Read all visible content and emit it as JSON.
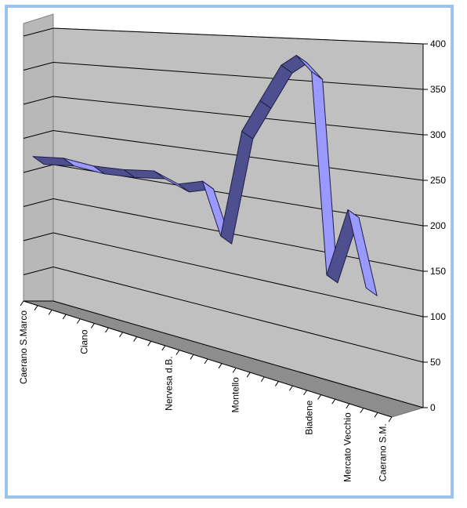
{
  "chart_data": {
    "type": "line",
    "style": "3d-ribbon",
    "categories": [
      "Caerano S.Marco",
      "Ciano",
      "Nervesa d.B.",
      "Montello",
      "Biadene",
      "Mercato Vecchio",
      "Caerano S.M."
    ],
    "y_ticks": [
      "0",
      "50",
      "100",
      "150",
      "200",
      "250",
      "300",
      "350",
      "400"
    ],
    "ylim": [
      0,
      400
    ],
    "grid": true,
    "legend": "none",
    "series": [
      {
        "points": [
          {
            "x": 0.0,
            "y": 205
          },
          {
            "x": 0.5,
            "y": 210
          },
          {
            "x": 1.0,
            "y": 206
          },
          {
            "x": 1.5,
            "y": 208
          },
          {
            "x": 2.0,
            "y": 213
          },
          {
            "x": 2.4,
            "y": 201
          },
          {
            "x": 2.8,
            "y": 210
          },
          {
            "x": 3.1,
            "y": 145
          },
          {
            "x": 3.45,
            "y": 280
          },
          {
            "x": 3.75,
            "y": 320
          },
          {
            "x": 4.1,
            "y": 365
          },
          {
            "x": 4.35,
            "y": 378
          },
          {
            "x": 4.6,
            "y": 360
          },
          {
            "x": 4.85,
            "y": 125
          },
          {
            "x": 5.2,
            "y": 205
          },
          {
            "x": 5.5,
            "y": 120
          }
        ]
      }
    ],
    "colors": {
      "ribbon_top": "#9999ff",
      "ribbon_dark": "#4e4f8f",
      "ribbon_outline": "#1e1e46",
      "wall": "#c0c0c0",
      "floor": "#8d8d8d",
      "gridline": "#000000"
    }
  }
}
